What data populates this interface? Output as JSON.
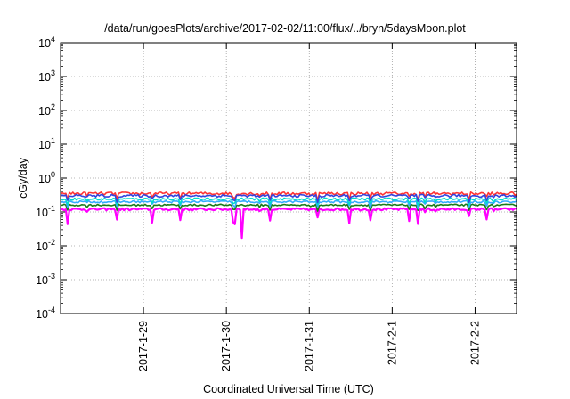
{
  "chart_data": {
    "type": "line",
    "title": "/data/run/goesPlots/archive/2017-02-02/11:00/flux/../bryn/5daysMoon.plot",
    "xlabel": "Coordinated Universal Time (UTC)",
    "ylabel": "cGy/day",
    "y_scale": "log",
    "ylim": [
      0.0001,
      10000
    ],
    "y_ticks": [
      {
        "value": 0.0001,
        "base": "10",
        "exp": "-4"
      },
      {
        "value": 0.001,
        "base": "10",
        "exp": "-3"
      },
      {
        "value": 0.01,
        "base": "10",
        "exp": "-2"
      },
      {
        "value": 0.1,
        "base": "10",
        "exp": "-1"
      },
      {
        "value": 1,
        "base": "10",
        "exp": "0"
      },
      {
        "value": 10,
        "base": "10",
        "exp": "1"
      },
      {
        "value": 100,
        "base": "10",
        "exp": "2"
      },
      {
        "value": 1000,
        "base": "10",
        "exp": "3"
      },
      {
        "value": 10000,
        "base": "10",
        "exp": "4"
      }
    ],
    "xlim": [
      "2017-01-28 00:00",
      "2017-02-02 12:00"
    ],
    "x_ticks": [
      "2017-1-29",
      "2017-1-30",
      "2017-1-31",
      "2017-2-1",
      "2017-2-2"
    ],
    "x_tick_values": [
      "2017-01-29",
      "2017-01-30",
      "2017-01-31",
      "2017-02-01",
      "2017-02-02"
    ],
    "grid": true,
    "legend": "none",
    "series": [
      {
        "color": "#ff00ff",
        "base": 0.12,
        "noise": 0.08,
        "dips": true
      },
      {
        "color": "#ff3333",
        "base": 0.35,
        "noise": 0.1,
        "dips": false
      },
      {
        "color": "#1a7a1a",
        "base": 0.16,
        "noise": 0.06,
        "dips": false
      },
      {
        "color": "#33aaff",
        "base": 0.2,
        "noise": 0.07,
        "dips": false
      },
      {
        "color": "#00ddcc",
        "base": 0.24,
        "noise": 0.07,
        "dips": false
      },
      {
        "color": "#3344dd",
        "base": 0.3,
        "noise": 0.09,
        "dips": false
      }
    ]
  }
}
